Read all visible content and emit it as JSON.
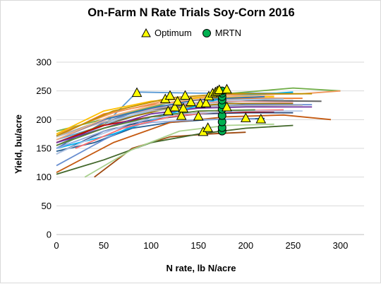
{
  "chart_data": {
    "type": "scatter",
    "title": "On-Farm N Rate Trials Soy-Corn 2016",
    "xlabel": "N rate, lb N/acre",
    "ylabel": "Yield, bu/acre",
    "xlim": [
      0,
      325
    ],
    "ylim": [
      0,
      300
    ],
    "x_ticks": [
      "0",
      "50",
      "100",
      "150",
      "200",
      "250",
      "300"
    ],
    "y_ticks": [
      "0",
      "50",
      "100",
      "150",
      "200",
      "250",
      "300"
    ],
    "grid": "horizontal",
    "legend_position": "top",
    "series": [
      {
        "name": "Optimum",
        "marker": "triangle",
        "color": "#ffff00",
        "points": [
          [
            85,
            247
          ],
          [
            115,
            236
          ],
          [
            120,
            242
          ],
          [
            118,
            215
          ],
          [
            125,
            222
          ],
          [
            128,
            232
          ],
          [
            132,
            207
          ],
          [
            134,
            220
          ],
          [
            136,
            242
          ],
          [
            142,
            231
          ],
          [
            150,
            206
          ],
          [
            152,
            228
          ],
          [
            155,
            179
          ],
          [
            158,
            229
          ],
          [
            160,
            186
          ],
          [
            161,
            241
          ],
          [
            165,
            246
          ],
          [
            168,
            248
          ],
          [
            170,
            250
          ],
          [
            172,
            252
          ],
          [
            180,
            253
          ],
          [
            180,
            222
          ],
          [
            200,
            203
          ],
          [
            216,
            201
          ]
        ]
      },
      {
        "name": "MRTN",
        "marker": "circle",
        "color": "#00b050",
        "points": [
          [
            175,
            180
          ],
          [
            175,
            186
          ],
          [
            175,
            196
          ],
          [
            175,
            207
          ],
          [
            175,
            218
          ],
          [
            175,
            226
          ],
          [
            175,
            234
          ],
          [
            175,
            240
          ],
          [
            175,
            246
          ],
          [
            175,
            250
          ]
        ]
      }
    ],
    "response_curves": [
      {
        "color": "#4472c4",
        "points": [
          [
            0,
            150
          ],
          [
            50,
            195
          ],
          [
            100,
            222
          ],
          [
            150,
            230
          ],
          [
            200,
            232
          ],
          [
            250,
            233
          ]
        ]
      },
      {
        "color": "#ed7d31",
        "points": [
          [
            0,
            170
          ],
          [
            50,
            210
          ],
          [
            100,
            226
          ],
          [
            150,
            234
          ],
          [
            200,
            237
          ],
          [
            260,
            237
          ]
        ]
      },
      {
        "color": "#a5a5a5",
        "points": [
          [
            0,
            170
          ],
          [
            50,
            200
          ],
          [
            100,
            218
          ],
          [
            150,
            228
          ],
          [
            200,
            232
          ],
          [
            280,
            232
          ]
        ]
      },
      {
        "color": "#5b9bd5",
        "points": [
          [
            0,
            165
          ],
          [
            50,
            190
          ],
          [
            85,
            248
          ],
          [
            150,
            246
          ],
          [
            250,
            246
          ]
        ]
      },
      {
        "color": "#70ad47",
        "points": [
          [
            0,
            180
          ],
          [
            60,
            205
          ],
          [
            120,
            230
          ],
          [
            180,
            245
          ],
          [
            250,
            255
          ],
          [
            300,
            250
          ]
        ]
      },
      {
        "color": "#264478",
        "points": [
          [
            0,
            140
          ],
          [
            50,
            180
          ],
          [
            100,
            200
          ],
          [
            150,
            210
          ],
          [
            200,
            212
          ],
          [
            250,
            212
          ]
        ]
      },
      {
        "color": "#9e480e",
        "points": [
          [
            40,
            100
          ],
          [
            80,
            150
          ],
          [
            120,
            170
          ],
          [
            160,
            175
          ],
          [
            200,
            178
          ]
        ]
      },
      {
        "color": "#636363",
        "points": [
          [
            0,
            155
          ],
          [
            50,
            190
          ],
          [
            100,
            215
          ],
          [
            150,
            230
          ],
          [
            220,
            233
          ],
          [
            280,
            232
          ]
        ]
      },
      {
        "color": "#997300",
        "points": [
          [
            0,
            160
          ],
          [
            60,
            198
          ],
          [
            120,
            220
          ],
          [
            180,
            228
          ],
          [
            250,
            228
          ]
        ]
      },
      {
        "color": "#255e91",
        "points": [
          [
            0,
            145
          ],
          [
            40,
            160
          ],
          [
            80,
            185
          ],
          [
            120,
            195
          ],
          [
            160,
            200
          ],
          [
            220,
            202
          ]
        ]
      },
      {
        "color": "#43682b",
        "points": [
          [
            0,
            105
          ],
          [
            50,
            130
          ],
          [
            100,
            160
          ],
          [
            150,
            175
          ],
          [
            200,
            185
          ],
          [
            250,
            190
          ]
        ]
      },
      {
        "color": "#698ed0",
        "points": [
          [
            0,
            120
          ],
          [
            50,
            165
          ],
          [
            100,
            205
          ],
          [
            150,
            222
          ],
          [
            200,
            226
          ],
          [
            270,
            226
          ]
        ]
      },
      {
        "color": "#f1975a",
        "points": [
          [
            0,
            175
          ],
          [
            60,
            212
          ],
          [
            120,
            235
          ],
          [
            180,
            243
          ],
          [
            260,
            245
          ],
          [
            300,
            250
          ]
        ]
      },
      {
        "color": "#b7b7b7",
        "points": [
          [
            0,
            170
          ],
          [
            50,
            196
          ],
          [
            100,
            215
          ],
          [
            150,
            222
          ],
          [
            200,
            224
          ],
          [
            260,
            225
          ]
        ]
      },
      {
        "color": "#c55a11",
        "points": [
          [
            0,
            108
          ],
          [
            60,
            160
          ],
          [
            120,
            195
          ],
          [
            180,
            205
          ],
          [
            240,
            208
          ],
          [
            290,
            200
          ]
        ]
      },
      {
        "color": "#9dc3e6",
        "points": [
          [
            10,
            160
          ],
          [
            60,
            198
          ],
          [
            110,
            222
          ],
          [
            170,
            234
          ],
          [
            240,
            236
          ]
        ]
      },
      {
        "color": "#a9d18e",
        "points": [
          [
            30,
            100
          ],
          [
            80,
            148
          ],
          [
            130,
            180
          ],
          [
            180,
            190
          ],
          [
            230,
            192
          ]
        ]
      },
      {
        "color": "#c00000",
        "points": [
          [
            0,
            160
          ],
          [
            50,
            190
          ],
          [
            100,
            205
          ],
          [
            150,
            212
          ],
          [
            230,
            214
          ]
        ]
      },
      {
        "color": "#7030a0",
        "points": [
          [
            0,
            160
          ],
          [
            50,
            185
          ],
          [
            100,
            210
          ],
          [
            150,
            220
          ],
          [
            200,
            222
          ],
          [
            270,
            222
          ]
        ]
      },
      {
        "color": "#00b0f0",
        "points": [
          [
            0,
            150
          ],
          [
            60,
            175
          ],
          [
            120,
            210
          ],
          [
            180,
            240
          ],
          [
            250,
            248
          ]
        ]
      },
      {
        "color": "#e7a4a4",
        "points": [
          [
            0,
            165
          ],
          [
            60,
            205
          ],
          [
            120,
            225
          ],
          [
            180,
            232
          ],
          [
            250,
            230
          ]
        ]
      },
      {
        "color": "#ffc000",
        "points": [
          [
            0,
            175
          ],
          [
            50,
            215
          ],
          [
            100,
            232
          ],
          [
            150,
            238
          ],
          [
            230,
            240
          ]
        ]
      },
      {
        "color": "#8faadc",
        "points": [
          [
            0,
            150
          ],
          [
            50,
            180
          ],
          [
            100,
            195
          ],
          [
            150,
            200
          ],
          [
            210,
            201
          ]
        ]
      },
      {
        "color": "#bf9000",
        "points": [
          [
            0,
            172
          ],
          [
            60,
            215
          ],
          [
            120,
            238
          ],
          [
            180,
            245
          ],
          [
            270,
            245
          ]
        ]
      },
      {
        "color": "#ff6f6f",
        "points": [
          [
            20,
            150
          ],
          [
            70,
            185
          ],
          [
            120,
            205
          ],
          [
            180,
            215
          ],
          [
            240,
            217
          ]
        ]
      },
      {
        "color": "#b4c7e7",
        "points": [
          [
            0,
            140
          ],
          [
            40,
            170
          ],
          [
            80,
            195
          ],
          [
            130,
            210
          ],
          [
            200,
            215
          ],
          [
            260,
            215
          ]
        ]
      },
      {
        "color": "#548235",
        "points": [
          [
            0,
            155
          ],
          [
            50,
            185
          ],
          [
            100,
            205
          ],
          [
            150,
            215
          ],
          [
            210,
            217
          ]
        ]
      },
      {
        "color": "#2e75b6",
        "points": [
          [
            0,
            165
          ],
          [
            50,
            200
          ],
          [
            100,
            220
          ],
          [
            150,
            235
          ],
          [
            220,
            240
          ]
        ]
      },
      {
        "color": "#f4b183",
        "points": [
          [
            0,
            165
          ],
          [
            55,
            205
          ],
          [
            110,
            228
          ],
          [
            170,
            240
          ],
          [
            230,
            243
          ]
        ]
      }
    ]
  }
}
